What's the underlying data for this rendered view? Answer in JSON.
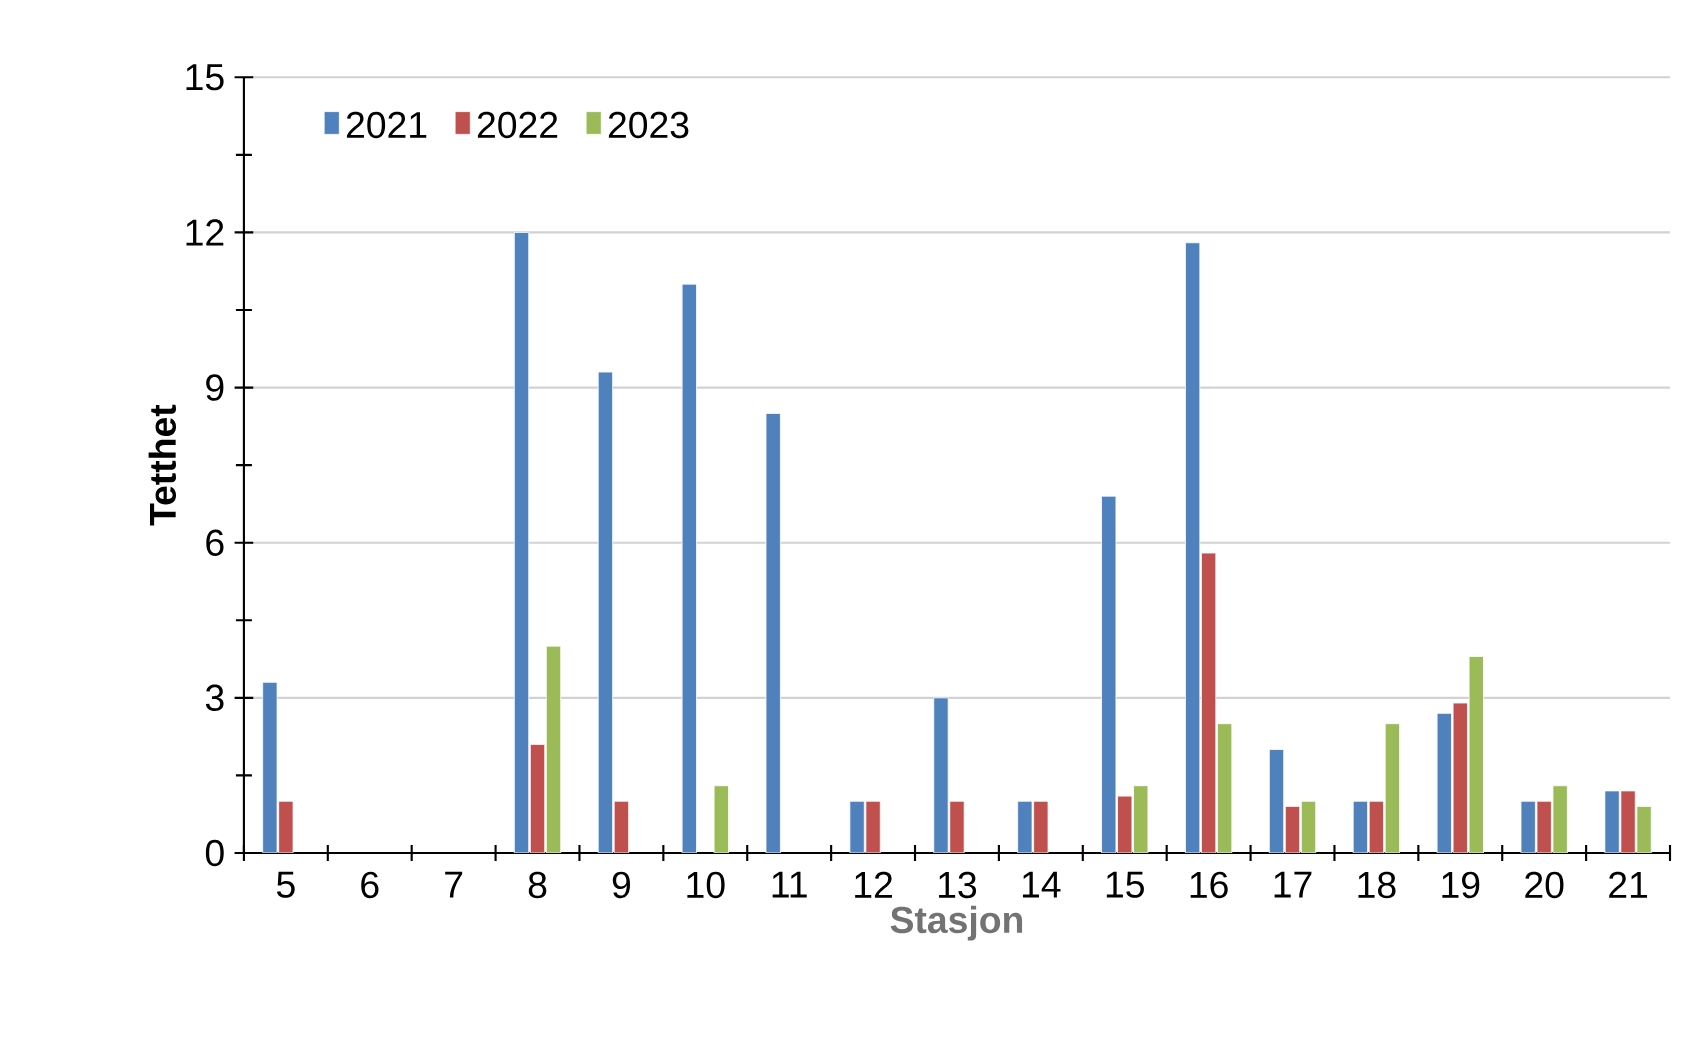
{
  "chart_data": {
    "type": "bar",
    "xlabel": "Stasjon",
    "ylabel": "Tetthet",
    "categories": [
      "5",
      "6",
      "7",
      "8",
      "9",
      "10",
      "11",
      "12",
      "13",
      "14",
      "15",
      "16",
      "17",
      "18",
      "19",
      "20",
      "21"
    ],
    "series": [
      {
        "name": "2021",
        "color": "#4f81bd",
        "values": [
          3.3,
          null,
          null,
          12.0,
          9.3,
          11.0,
          8.5,
          1.0,
          3.0,
          1.0,
          6.9,
          11.8,
          2.0,
          1.0,
          2.7,
          1.0,
          1.2
        ]
      },
      {
        "name": "2022",
        "color": "#c0504d",
        "values": [
          1.0,
          null,
          null,
          2.1,
          1.0,
          null,
          null,
          1.0,
          1.0,
          1.0,
          1.1,
          5.8,
          0.9,
          1.0,
          2.9,
          1.0,
          1.2
        ]
      },
      {
        "name": "2023",
        "color": "#9bbb59",
        "values": [
          null,
          null,
          null,
          4.0,
          null,
          1.3,
          null,
          null,
          null,
          null,
          1.3,
          2.5,
          1.0,
          2.5,
          3.8,
          1.3,
          0.9
        ]
      }
    ],
    "ylim": [
      0,
      15
    ],
    "yticks": [
      0,
      3,
      6,
      9,
      12,
      15
    ],
    "grid": "y",
    "legend": "top left"
  }
}
